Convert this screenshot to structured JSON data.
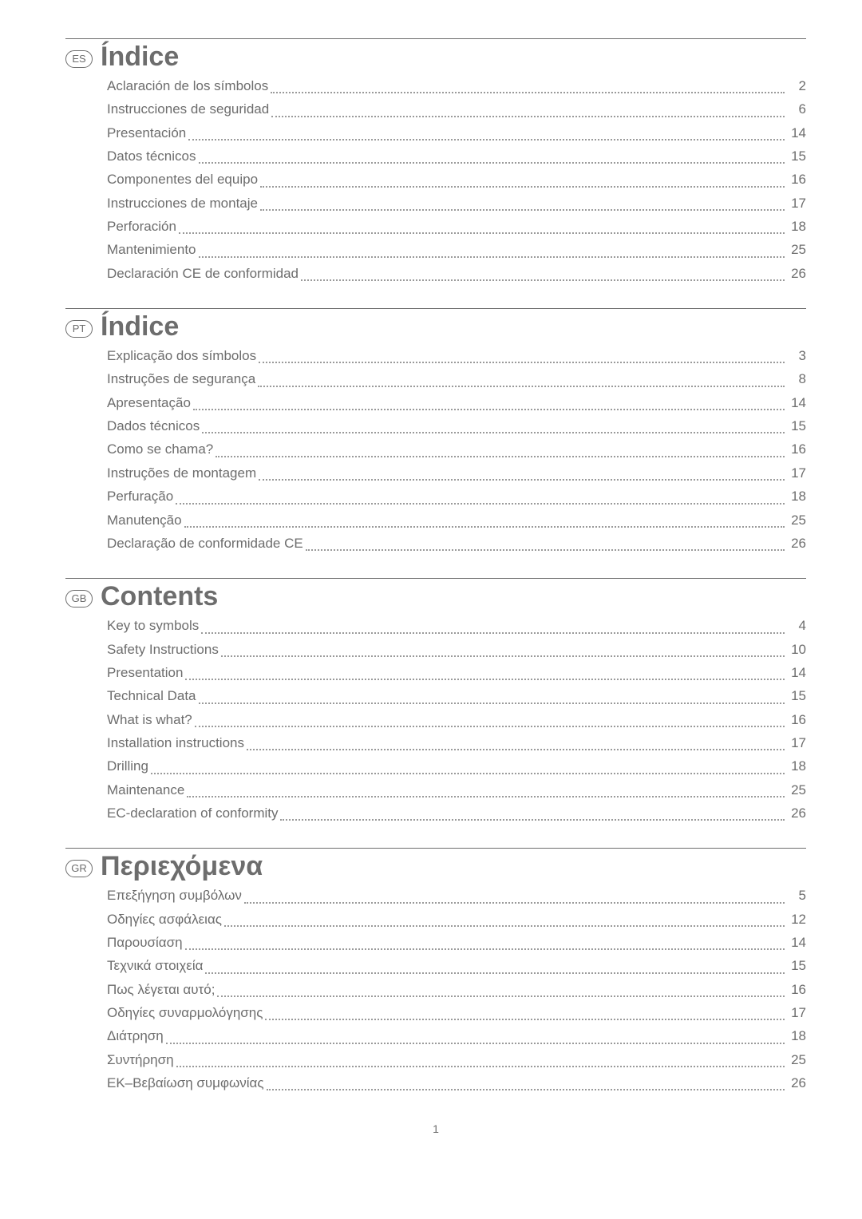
{
  "colors": {
    "text": "#6d6d6d",
    "rule": "#6d6d6d",
    "leader": "#9a9a9a",
    "background": "#ffffff"
  },
  "typography": {
    "heading_fontsize_pt": 26,
    "heading_weight": "bold",
    "body_fontsize_pt": 13,
    "badge_fontsize_pt": 10,
    "font_family": "Arial"
  },
  "page_number": "1",
  "sections": [
    {
      "lang_code": "ES",
      "title": "Índice",
      "items": [
        {
          "label": "Aclaración de los símbolos",
          "page": "2"
        },
        {
          "label": "Instrucciones de seguridad",
          "page": "6"
        },
        {
          "label": "Presentación",
          "page": "14"
        },
        {
          "label": "Datos técnicos",
          "page": "15"
        },
        {
          "label": "Componentes del equipo",
          "page": "16"
        },
        {
          "label": "Instrucciones de montaje",
          "page": "17"
        },
        {
          "label": "Perforación",
          "page": "18"
        },
        {
          "label": "Mantenimiento",
          "page": "25"
        },
        {
          "label": "Declaración CE de conformidad",
          "page": "26"
        }
      ]
    },
    {
      "lang_code": "PT",
      "title": "Índice",
      "items": [
        {
          "label": "Explicação dos símbolos",
          "page": "3"
        },
        {
          "label": "Instruções de segurança",
          "page": "8"
        },
        {
          "label": "Apresentação",
          "page": "14"
        },
        {
          "label": "Dados técnicos",
          "page": "15"
        },
        {
          "label": "Como se chama?",
          "page": "16"
        },
        {
          "label": "Instruções de montagem",
          "page": "17"
        },
        {
          "label": "Perfuração",
          "page": "18"
        },
        {
          "label": "Manutenção",
          "page": "25"
        },
        {
          "label": "Declaração de conformidade CE",
          "page": "26"
        }
      ]
    },
    {
      "lang_code": "GB",
      "title": "Contents",
      "items": [
        {
          "label": "Key to symbols",
          "page": "4"
        },
        {
          "label": "Safety Instructions",
          "page": "10"
        },
        {
          "label": "Presentation",
          "page": "14"
        },
        {
          "label": "Technical Data",
          "page": "15"
        },
        {
          "label": "What is what?",
          "page": "16"
        },
        {
          "label": "Installation instructions",
          "page": "17"
        },
        {
          "label": "Drilling",
          "page": "18"
        },
        {
          "label": "Maintenance",
          "page": "25"
        },
        {
          "label": "EC-declaration of conformity",
          "page": "26"
        }
      ]
    },
    {
      "lang_code": "GR",
      "title": "Περιεχόμενα",
      "items": [
        {
          "label": "Επεξήγηση συμβόλων",
          "page": "5"
        },
        {
          "label": "Οδηγίες ασφάλειας",
          "page": "12"
        },
        {
          "label": "Παρουσίαση",
          "page": "14"
        },
        {
          "label": "Τεχνικά στοιχεία",
          "page": "15"
        },
        {
          "label": "Πως λέγεται αυτό;",
          "page": "16"
        },
        {
          "label": "Οδηγίες συναρμολόγησης",
          "page": "17"
        },
        {
          "label": "Διάτρηση",
          "page": "18"
        },
        {
          "label": "Συντήρηση",
          "page": "25"
        },
        {
          "label": "ΕΚ–Βεβαίωση συμφωνίας",
          "page": "26"
        }
      ]
    }
  ]
}
